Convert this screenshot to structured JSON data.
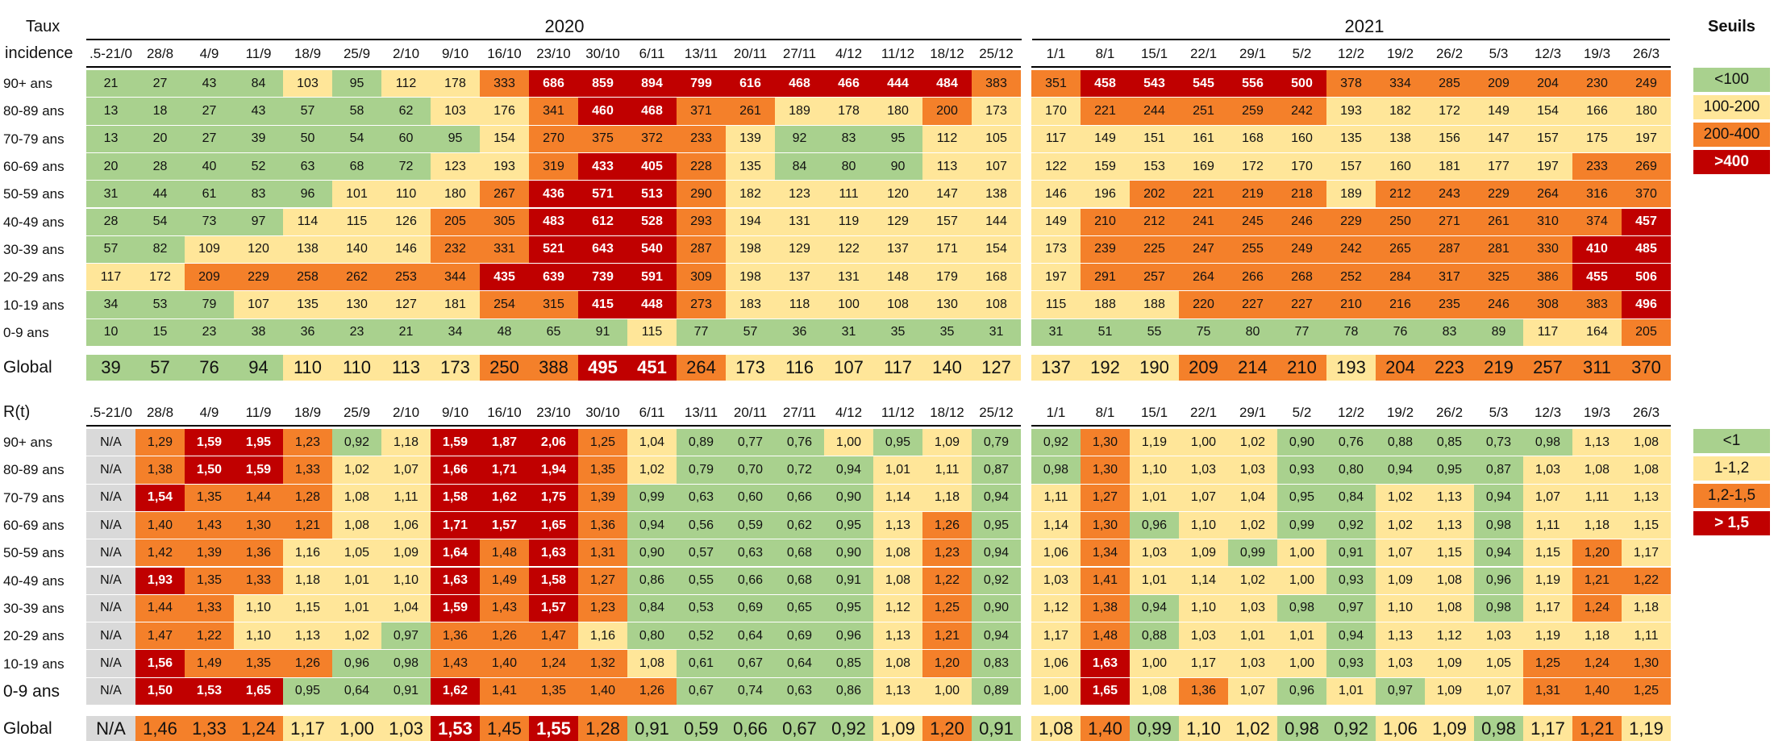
{
  "incidence_section": {
    "title_line1": "Taux",
    "title_line2": "incidence",
    "year_left": "2020",
    "year_right": "2021",
    "dates": [
      ".5-21/0",
      "28/8",
      "4/9",
      "11/9",
      "18/9",
      "25/9",
      "2/10",
      "9/10",
      "16/10",
      "23/10",
      "30/10",
      "6/11",
      "13/11",
      "20/11",
      "27/11",
      "4/12",
      "11/12",
      "18/12",
      "25/12",
      "1/1",
      "8/1",
      "15/1",
      "22/1",
      "29/1",
      "5/2",
      "12/2",
      "19/2",
      "26/2",
      "5/3",
      "12/3",
      "19/3",
      "26/3"
    ],
    "rows": [
      {
        "label": "90+ ans",
        "values": [
          "21",
          "27",
          "43",
          "84",
          "103",
          "95",
          "112",
          "178",
          "333",
          "686",
          "859",
          "894",
          "799",
          "616",
          "468",
          "466",
          "444",
          "484",
          "383",
          "351",
          "458",
          "543",
          "545",
          "556",
          "500",
          "378",
          "334",
          "285",
          "209",
          "204",
          "230",
          "249"
        ]
      },
      {
        "label": "80-89 ans",
        "values": [
          "13",
          "18",
          "27",
          "43",
          "57",
          "58",
          "62",
          "103",
          "176",
          "341",
          "460",
          "468",
          "371",
          "261",
          "189",
          "178",
          "180",
          "200",
          "173",
          "170",
          "221",
          "244",
          "251",
          "259",
          "242",
          "193",
          "182",
          "172",
          "149",
          "154",
          "166",
          "180"
        ]
      },
      {
        "label": "70-79 ans",
        "values": [
          "13",
          "20",
          "27",
          "39",
          "50",
          "54",
          "60",
          "95",
          "154",
          "270",
          "375",
          "372",
          "233",
          "139",
          "92",
          "83",
          "95",
          "112",
          "105",
          "117",
          "149",
          "151",
          "161",
          "168",
          "160",
          "135",
          "138",
          "156",
          "147",
          "157",
          "175",
          "197"
        ]
      },
      {
        "label": "60-69 ans",
        "values": [
          "20",
          "28",
          "40",
          "52",
          "63",
          "68",
          "72",
          "123",
          "193",
          "319",
          "433",
          "405",
          "228",
          "135",
          "84",
          "80",
          "90",
          "113",
          "107",
          "122",
          "159",
          "153",
          "169",
          "172",
          "170",
          "157",
          "160",
          "181",
          "177",
          "197",
          "233",
          "269"
        ]
      },
      {
        "label": "50-59 ans",
        "values": [
          "31",
          "44",
          "61",
          "83",
          "96",
          "101",
          "110",
          "180",
          "267",
          "436",
          "571",
          "513",
          "290",
          "182",
          "123",
          "111",
          "120",
          "147",
          "138",
          "146",
          "196",
          "202",
          "221",
          "219",
          "218",
          "189",
          "212",
          "243",
          "229",
          "264",
          "316",
          "370"
        ]
      },
      {
        "label": "40-49 ans",
        "values": [
          "28",
          "54",
          "73",
          "97",
          "114",
          "115",
          "126",
          "205",
          "305",
          "483",
          "612",
          "528",
          "293",
          "194",
          "131",
          "119",
          "129",
          "157",
          "144",
          "149",
          "210",
          "212",
          "241",
          "245",
          "246",
          "229",
          "250",
          "271",
          "261",
          "310",
          "374",
          "457"
        ]
      },
      {
        "label": "30-39 ans",
        "values": [
          "57",
          "82",
          "109",
          "120",
          "138",
          "140",
          "146",
          "232",
          "331",
          "521",
          "643",
          "540",
          "287",
          "198",
          "129",
          "122",
          "137",
          "171",
          "154",
          "173",
          "239",
          "225",
          "247",
          "255",
          "249",
          "242",
          "265",
          "287",
          "281",
          "330",
          "410",
          "485"
        ]
      },
      {
        "label": "20-29 ans",
        "values": [
          "117",
          "172",
          "209",
          "229",
          "258",
          "262",
          "253",
          "344",
          "435",
          "639",
          "739",
          "591",
          "309",
          "198",
          "137",
          "131",
          "148",
          "179",
          "168",
          "197",
          "291",
          "257",
          "264",
          "266",
          "268",
          "252",
          "284",
          "317",
          "325",
          "386",
          "455",
          "506"
        ]
      },
      {
        "label": "10-19 ans",
        "values": [
          "34",
          "53",
          "79",
          "107",
          "135",
          "130",
          "127",
          "181",
          "254",
          "315",
          "415",
          "448",
          "273",
          "183",
          "118",
          "100",
          "108",
          "130",
          "108",
          "115",
          "188",
          "188",
          "220",
          "227",
          "227",
          "210",
          "216",
          "235",
          "246",
          "308",
          "383",
          "496"
        ]
      },
      {
        "label": "0-9 ans",
        "values": [
          "10",
          "15",
          "23",
          "38",
          "36",
          "23",
          "21",
          "34",
          "48",
          "65",
          "91",
          "115",
          "77",
          "57",
          "36",
          "31",
          "35",
          "35",
          "31",
          "31",
          "51",
          "55",
          "75",
          "80",
          "77",
          "78",
          "76",
          "83",
          "89",
          "117",
          "164",
          "205"
        ]
      }
    ],
    "global": {
      "label": "Global",
      "values": [
        "39",
        "57",
        "76",
        "94",
        "110",
        "110",
        "113",
        "173",
        "250",
        "388",
        "495",
        "451",
        "264",
        "173",
        "116",
        "107",
        "117",
        "140",
        "127",
        "137",
        "192",
        "190",
        "209",
        "214",
        "210",
        "193",
        "204",
        "223",
        "219",
        "257",
        "311",
        "370"
      ]
    }
  },
  "rt_section": {
    "title": "R(t)",
    "dates": [
      ".5-21/0",
      "28/8",
      "4/9",
      "11/9",
      "18/9",
      "25/9",
      "2/10",
      "9/10",
      "16/10",
      "23/10",
      "30/10",
      "6/11",
      "13/11",
      "20/11",
      "27/11",
      "4/12",
      "11/12",
      "18/12",
      "25/12",
      "1/1",
      "8/1",
      "15/1",
      "22/1",
      "29/1",
      "5/2",
      "12/2",
      "19/2",
      "26/2",
      "5/3",
      "12/3",
      "19/3",
      "26/3"
    ],
    "rows": [
      {
        "label": "90+ ans",
        "values": [
          "N/A",
          "1,29",
          "1,59",
          "1,95",
          "1,23",
          "0,92",
          "1,18",
          "1,59",
          "1,87",
          "2,06",
          "1,25",
          "1,04",
          "0,89",
          "0,77",
          "0,76",
          "1,00",
          "0,95",
          "1,09",
          "0,79",
          "0,92",
          "1,30",
          "1,19",
          "1,00",
          "1,02",
          "0,90",
          "0,76",
          "0,88",
          "0,85",
          "0,73",
          "0,98",
          "1,13",
          "1,08"
        ]
      },
      {
        "label": "80-89 ans",
        "values": [
          "N/A",
          "1,38",
          "1,50",
          "1,59",
          "1,33",
          "1,02",
          "1,07",
          "1,66",
          "1,71",
          "1,94",
          "1,35",
          "1,02",
          "0,79",
          "0,70",
          "0,72",
          "0,94",
          "1,01",
          "1,11",
          "0,87",
          "0,98",
          "1,30",
          "1,10",
          "1,03",
          "1,03",
          "0,93",
          "0,80",
          "0,94",
          "0,95",
          "0,87",
          "1,03",
          "1,08",
          "1,08"
        ]
      },
      {
        "label": "70-79 ans",
        "values": [
          "N/A",
          "1,54",
          "1,35",
          "1,44",
          "1,28",
          "1,08",
          "1,11",
          "1,58",
          "1,62",
          "1,75",
          "1,39",
          "0,99",
          "0,63",
          "0,60",
          "0,66",
          "0,90",
          "1,14",
          "1,18",
          "0,94",
          "1,11",
          "1,27",
          "1,01",
          "1,07",
          "1,04",
          "0,95",
          "0,84",
          "1,02",
          "1,13",
          "0,94",
          "1,07",
          "1,11",
          "1,13"
        ]
      },
      {
        "label": "60-69 ans",
        "values": [
          "N/A",
          "1,40",
          "1,43",
          "1,30",
          "1,21",
          "1,08",
          "1,06",
          "1,71",
          "1,57",
          "1,65",
          "1,36",
          "0,94",
          "0,56",
          "0,59",
          "0,62",
          "0,95",
          "1,13",
          "1,26",
          "0,95",
          "1,14",
          "1,30",
          "0,96",
          "1,10",
          "1,02",
          "0,99",
          "0,92",
          "1,02",
          "1,13",
          "0,98",
          "1,11",
          "1,18",
          "1,15"
        ]
      },
      {
        "label": "50-59 ans",
        "values": [
          "N/A",
          "1,42",
          "1,39",
          "1,36",
          "1,16",
          "1,05",
          "1,09",
          "1,64",
          "1,48",
          "1,63",
          "1,31",
          "0,90",
          "0,57",
          "0,63",
          "0,68",
          "0,90",
          "1,08",
          "1,23",
          "0,94",
          "1,06",
          "1,34",
          "1,03",
          "1,09",
          "0,99",
          "1,00",
          "0,91",
          "1,07",
          "1,15",
          "0,94",
          "1,15",
          "1,20",
          "1,17"
        ]
      },
      {
        "label": "40-49 ans",
        "values": [
          "N/A",
          "1,93",
          "1,35",
          "1,33",
          "1,18",
          "1,01",
          "1,10",
          "1,63",
          "1,49",
          "1,58",
          "1,27",
          "0,86",
          "0,55",
          "0,66",
          "0,68",
          "0,91",
          "1,08",
          "1,22",
          "0,92",
          "1,03",
          "1,41",
          "1,01",
          "1,14",
          "1,02",
          "1,00",
          "0,93",
          "1,09",
          "1,08",
          "0,96",
          "1,19",
          "1,21",
          "1,22"
        ]
      },
      {
        "label": "30-39 ans",
        "values": [
          "N/A",
          "1,44",
          "1,33",
          "1,10",
          "1,15",
          "1,01",
          "1,04",
          "1,59",
          "1,43",
          "1,57",
          "1,23",
          "0,84",
          "0,53",
          "0,69",
          "0,65",
          "0,95",
          "1,12",
          "1,25",
          "0,90",
          "1,12",
          "1,38",
          "0,94",
          "1,10",
          "1,03",
          "0,98",
          "0,97",
          "1,10",
          "1,08",
          "0,98",
          "1,17",
          "1,24",
          "1,18"
        ]
      },
      {
        "label": "20-29 ans",
        "values": [
          "N/A",
          "1,47",
          "1,22",
          "1,10",
          "1,13",
          "1,02",
          "0,97",
          "1,36",
          "1,26",
          "1,47",
          "1,16",
          "0,80",
          "0,52",
          "0,64",
          "0,69",
          "0,96",
          "1,13",
          "1,21",
          "0,94",
          "1,17",
          "1,48",
          "0,88",
          "1,03",
          "1,01",
          "1,01",
          "0,94",
          "1,13",
          "1,12",
          "1,03",
          "1,19",
          "1,18",
          "1,11"
        ]
      },
      {
        "label": "10-19 ans",
        "values": [
          "N/A",
          "1,56",
          "1,49",
          "1,35",
          "1,26",
          "0,96",
          "0,98",
          "1,43",
          "1,40",
          "1,24",
          "1,32",
          "1,08",
          "0,61",
          "0,67",
          "0,64",
          "0,85",
          "1,08",
          "1,20",
          "0,83",
          "1,06",
          "1,63",
          "1,00",
          "1,17",
          "1,03",
          "1,00",
          "0,93",
          "1,03",
          "1,09",
          "1,05",
          "1,25",
          "1,24",
          "1,30"
        ]
      },
      {
        "label": "0-9 ans",
        "values": [
          "N/A",
          "1,50",
          "1,53",
          "1,65",
          "0,95",
          "0,64",
          "0,91",
          "1,62",
          "1,41",
          "1,35",
          "1,40",
          "1,26",
          "0,67",
          "0,74",
          "0,63",
          "0,86",
          "1,13",
          "1,00",
          "0,89",
          "1,00",
          "1,65",
          "1,08",
          "1,36",
          "1,07",
          "0,96",
          "1,01",
          "0,97",
          "1,09",
          "1,07",
          "1,31",
          "1,40",
          "1,25"
        ]
      }
    ],
    "global": {
      "label": "Global",
      "values": [
        "N/A",
        "1,46",
        "1,33",
        "1,24",
        "1,17",
        "1,00",
        "1,03",
        "1,53",
        "1,45",
        "1,55",
        "1,28",
        "0,91",
        "0,59",
        "0,66",
        "0,67",
        "0,92",
        "1,09",
        "1,20",
        "0,91",
        "1,08",
        "1,40",
        "0,99",
        "1,10",
        "1,02",
        "0,98",
        "0,92",
        "1,06",
        "1,09",
        "0,98",
        "1,17",
        "1,21",
        "1,19"
      ]
    }
  },
  "legend": {
    "title": "Seuils",
    "incidence_thresholds": [
      "<100",
      "100-200",
      "200-400",
      ">400"
    ],
    "rt_thresholds": [
      "<1",
      "1-1,2",
      "1,2-1,5",
      "> 1,5"
    ]
  },
  "colors": {
    "green": "#a9d18e",
    "yellow": "#ffe699",
    "orange": "#f4802a",
    "red": "#c00000",
    "grey": "#d9d9d9"
  }
}
